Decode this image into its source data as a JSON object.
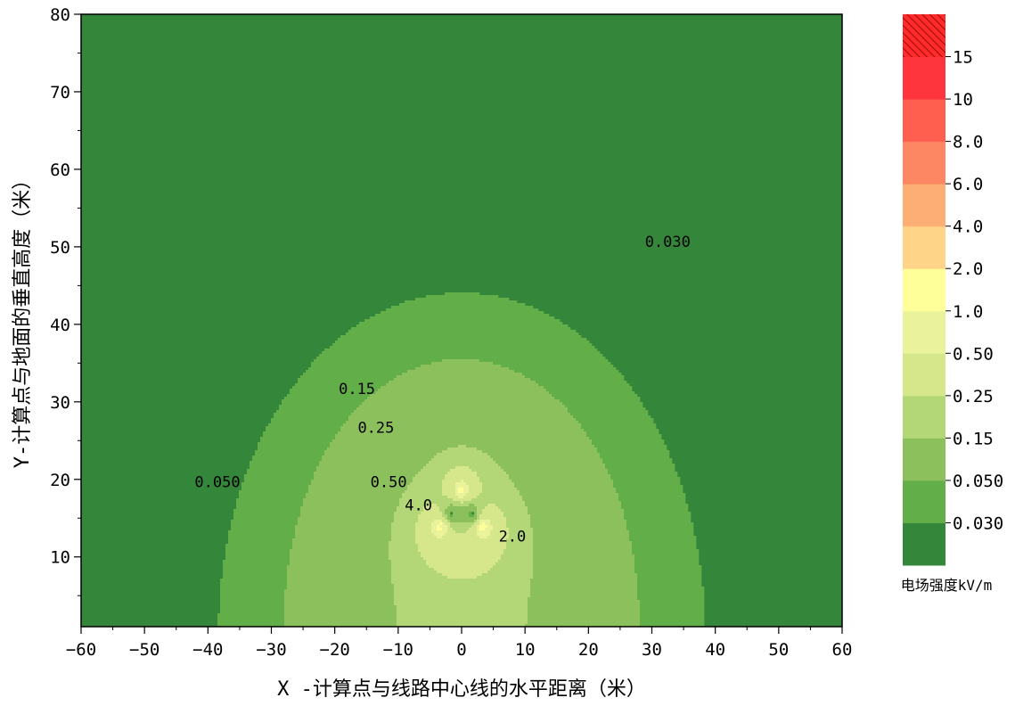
{
  "chart_data": {
    "type": "contour",
    "xlabel": "X -计算点与线路中心线的水平距离（米）",
    "ylabel": "Y-计算点与地面的垂直高度（米）",
    "xlim": [
      -60,
      60
    ],
    "ylim": [
      1,
      80
    ],
    "x_ticks": [
      -60,
      -50,
      -40,
      -30,
      -20,
      -10,
      0,
      10,
      20,
      30,
      40,
      50,
      60
    ],
    "y_ticks": [
      10,
      20,
      30,
      40,
      50,
      60,
      70,
      80
    ],
    "conductors": [
      {
        "x": 0,
        "y": 18.5
      },
      {
        "x": -3.3,
        "y": 14.0
      },
      {
        "x": 3.3,
        "y": 14.0
      }
    ],
    "colorbar": {
      "title": "电场强度kV/m",
      "levels": [
        "0.030",
        "0.050",
        "0.15",
        "0.25",
        "0.50",
        "1.0",
        "2.0",
        "4.0",
        "6.0",
        "8.0",
        "10",
        "15"
      ],
      "colors": [
        "#34873a",
        "#62ae48",
        "#8cc05c",
        "#b3d676",
        "#d6e68a",
        "#eaf29c",
        "#ffff99",
        "#fdd488",
        "#fcae74",
        "#fc8762",
        "#fe5f4e",
        "#ff353e",
        "#ff2a2a"
      ]
    },
    "contour_labels": [
      {
        "text": "0.030",
        "x": 32.5,
        "y": 50
      },
      {
        "text": "0.050",
        "x": -38.5,
        "y": 19
      },
      {
        "text": "0.15",
        "x": -16.5,
        "y": 31
      },
      {
        "text": "0.25",
        "x": -13.5,
        "y": 26
      },
      {
        "text": "0.50",
        "x": -11.5,
        "y": 19
      },
      {
        "text": "4.0",
        "x": -6.8,
        "y": 16
      },
      {
        "text": "2.0",
        "x": 8.0,
        "y": 12
      }
    ]
  }
}
